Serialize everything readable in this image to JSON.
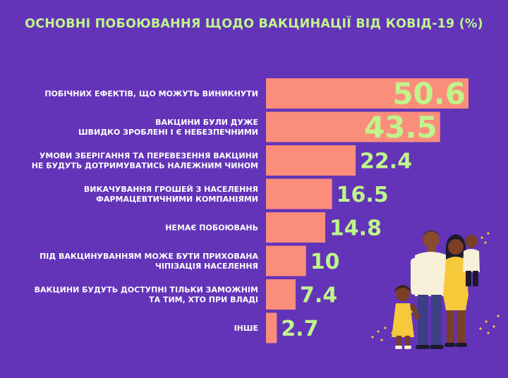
{
  "title": "ОСНОВНІ ПОБОЮВАННЯ ЩОДО ВАКЦИНАЦІЇ ВІД КОВІД-19 (%)",
  "colors": {
    "background": "#6334b8",
    "bar": "#fb8d7b",
    "title": "#bff58b",
    "value_label": "#bff58b",
    "category_label": "#ffffff"
  },
  "chart_data": {
    "type": "bar",
    "orientation": "horizontal",
    "title": "ОСНОВНІ ПОБОЮВАННЯ ЩОДО ВАКЦИНАЦІЇ ВІД КОВІД-19 (%)",
    "categories": [
      [
        "ПОБІЧНИХ ЕФЕКТІВ, ЩО МОЖУТЬ ВИНИКНУТИ"
      ],
      [
        "ВАКЦИНИ БУЛИ ДУЖЕ",
        "ШВИДКО ЗРОБЛЕНІ І Є НЕБЕЗПЕЧНИМИ"
      ],
      [
        "УМОВИ ЗБЕРІГАННЯ ТА ПЕРЕВЕЗЕННЯ ВАКЦИНИ",
        "НЕ БУДУТЬ ДОТРИМУВАТИСЬ НАЛЕЖНИМ ЧИНОМ"
      ],
      [
        "ВИКАЧУВАННЯ ГРОШЕЙ З НАСЕЛЕННЯ",
        "ФАРМАЦЕВТИЧНИМИ КОМПАНІЯМИ"
      ],
      [
        "НЕМАЄ ПОБОЮВАНЬ"
      ],
      [
        "ПІД ВАКЦИНУВАННЯМ МОЖЕ БУТИ ПРИХОВАНА",
        "ЧІПІЗАЦІЯ НАСЕЛЕННЯ"
      ],
      [
        "ВАКЦИНИ БУДУТЬ ДОСТУПНІ ТІЛЬКИ ЗАМОЖНІМ",
        "ТА ТИМ, ХТО ПРИ ВЛАДІ"
      ],
      [
        "ІНШЕ"
      ]
    ],
    "values": [
      50.6,
      43.5,
      22.4,
      16.5,
      14.8,
      10,
      7.4,
      2.7
    ],
    "value_labels": [
      "50.6",
      "43.5",
      "22.4",
      "16.5",
      "14.8",
      "10",
      "7.4",
      "2.7"
    ],
    "xlabel": "",
    "ylabel": "",
    "xlim": [
      0,
      50.6
    ],
    "grid": false,
    "legend": "none"
  }
}
